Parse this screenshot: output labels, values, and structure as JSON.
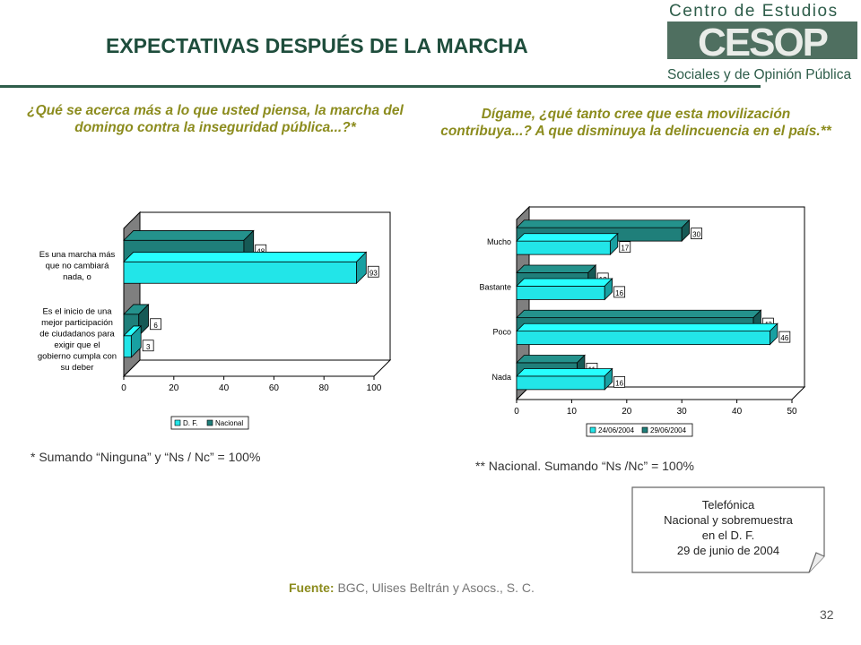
{
  "header": {
    "title": "EXPECTATIVAS DESPUÉS DE LA MARCHA",
    "logo": {
      "line1": "Centro de Estudios",
      "mark": "CESOP",
      "line2": "Sociales y de Opinión Pública"
    }
  },
  "left": {
    "question": "¿Qué se acerca más a lo que usted piensa, la marcha del domingo contra la inseguridad pública...?*",
    "note": "* Sumando “Ninguna” y “Ns / Nc” = 100%"
  },
  "right": {
    "question": "Dígame, ¿qué tanto cree que esta movilización contribuya...? A que disminuya la delincuencia en el país.**",
    "note": "** Nacional. Sumando “Ns /Nc” = 100%"
  },
  "footer": {
    "source_label": "Fuente:",
    "source_text": " BGC, Ulises Beltrán y Asocs., S. C.",
    "info_lines": [
      "Telefónica",
      "Nacional y sobremuestra",
      "en el D. F.",
      "29 de junio de 2004"
    ],
    "page_number": "32"
  },
  "colors": {
    "cyan": "#22e5e8",
    "teal": "#1f7f7a",
    "wall": "#7f7f7f",
    "title": "#1e4d3c",
    "question": "#8c8c1e"
  },
  "chart_data": [
    {
      "type": "bar",
      "orientation": "horizontal",
      "categories": [
        [
          "Es una marcha más",
          "que no cambiará",
          "nada, o"
        ],
        [
          "Es el inicio de una",
          "mejor participación",
          "de ciudadanos para",
          "exigir que el",
          "gobierno cumpla con",
          "su deber"
        ]
      ],
      "series": [
        {
          "name": "D. F.",
          "color": "#22e5e8",
          "values": [
            93,
            3
          ]
        },
        {
          "name": "Nacional",
          "color": "#1f7f7a",
          "values": [
            48,
            6
          ]
        }
      ],
      "xlim": [
        0,
        100
      ],
      "xticks": [
        0,
        20,
        40,
        60,
        80,
        100
      ],
      "legend": "bottom"
    },
    {
      "type": "bar",
      "orientation": "horizontal",
      "categories": [
        [
          "Mucho"
        ],
        [
          "Bastante"
        ],
        [
          "Poco"
        ],
        [
          "Nada"
        ]
      ],
      "series": [
        {
          "name": "24/06/2004",
          "color": "#22e5e8",
          "values": [
            17,
            16,
            46,
            16
          ]
        },
        {
          "name": "29/06/2004",
          "color": "#1f7f7a",
          "values": [
            30,
            13,
            43,
            11
          ]
        }
      ],
      "xlim": [
        0,
        50
      ],
      "xticks": [
        0,
        10,
        20,
        30,
        40,
        50
      ],
      "legend": "bottom"
    }
  ]
}
